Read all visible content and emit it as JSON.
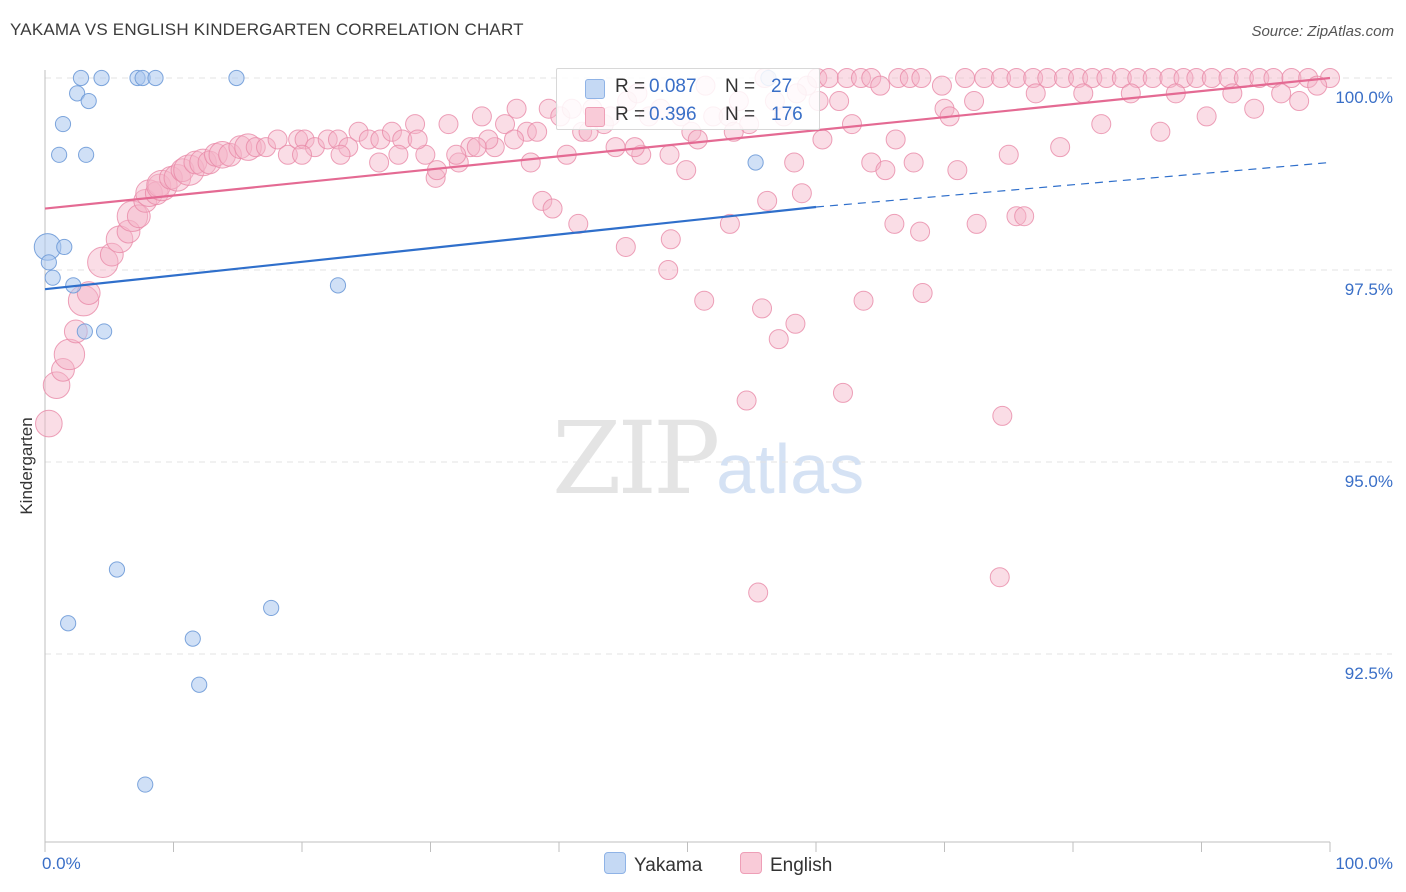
{
  "header": {
    "title": "YAKAMA VS ENGLISH KINDERGARTEN CORRELATION CHART",
    "source": "Source: ZipAtlas.com"
  },
  "watermark": {
    "zip": "ZIP",
    "atlas": "atlas"
  },
  "legend": {
    "rows": [
      {
        "r_label": "R = ",
        "r_value": "0.087",
        "n_label": "N = ",
        "n_value": "27",
        "color": "#a9c7ef"
      },
      {
        "r_label": "R = ",
        "r_value": "0.396",
        "n_label": "N = ",
        "n_value": "176",
        "color": "#f5b4c7"
      }
    ]
  },
  "bottom_legend": {
    "yakama": "Yakama",
    "english": "English"
  },
  "chart_data": {
    "type": "scatter",
    "title": "YAKAMA VS ENGLISH KINDERGARTEN CORRELATION CHART",
    "xlabel": "",
    "ylabel": "Kindergarten",
    "xlim": [
      0,
      100
    ],
    "ylim": [
      90.2,
      100.3
    ],
    "x_tick_labels": [
      "0.0%",
      "100.0%"
    ],
    "y_ticks": [
      100,
      97.5,
      95,
      92.5
    ],
    "y_tick_labels": [
      "100.0%",
      "97.5%",
      "95.0%",
      "92.5%"
    ],
    "grid": true,
    "series": [
      {
        "name": "Yakama",
        "color": "#a9c7ef",
        "stroke": "#6f9bd8",
        "points": [
          [
            0.2,
            97.8,
            14
          ],
          [
            0.3,
            97.6,
            8
          ],
          [
            0.6,
            97.4,
            8
          ],
          [
            1.5,
            97.8,
            8
          ],
          [
            1.8,
            92.9,
            8
          ],
          [
            2.2,
            97.3,
            8
          ],
          [
            1.4,
            99.4,
            8
          ],
          [
            1.1,
            99.0,
            8
          ],
          [
            3.2,
            99.0,
            8
          ],
          [
            2.5,
            99.8,
            8
          ],
          [
            3.4,
            99.7,
            8
          ],
          [
            2.8,
            100.0,
            8
          ],
          [
            4.4,
            100.0,
            8
          ],
          [
            7.2,
            100.0,
            8
          ],
          [
            7.6,
            100.0,
            8
          ],
          [
            8.6,
            100.0,
            8
          ],
          [
            14.9,
            100.0,
            8
          ],
          [
            3.1,
            96.7,
            8
          ],
          [
            4.6,
            96.7,
            8
          ],
          [
            5.6,
            93.6,
            8
          ],
          [
            11.5,
            92.7,
            8
          ],
          [
            12.0,
            92.1,
            8
          ],
          [
            17.6,
            93.1,
            8
          ],
          [
            7.8,
            90.8,
            8
          ],
          [
            22.8,
            97.3,
            8
          ],
          [
            55.3,
            98.9,
            8
          ],
          [
            56.3,
            100.0,
            8
          ]
        ],
        "trend": {
          "x0": 0,
          "y0": 97.25,
          "x1": 60,
          "y1": 98.32,
          "x_dash_end": 100,
          "y_dash_end": 98.9
        }
      },
      {
        "name": "English",
        "color": "#f5b4c7",
        "stroke": "#e98aa8",
        "points": [
          [
            0.3,
            95.5,
            14
          ],
          [
            0.9,
            96.0,
            14
          ],
          [
            1.4,
            96.2,
            12
          ],
          [
            1.9,
            96.4,
            16
          ],
          [
            2.4,
            96.7,
            12
          ],
          [
            3.0,
            97.1,
            16
          ],
          [
            3.4,
            97.2,
            12
          ],
          [
            4.5,
            97.6,
            16
          ],
          [
            5.2,
            97.7,
            12
          ],
          [
            5.8,
            97.9,
            14
          ],
          [
            6.5,
            98.0,
            12
          ],
          [
            6.8,
            98.2,
            16
          ],
          [
            7.3,
            98.2,
            12
          ],
          [
            7.8,
            98.4,
            12
          ],
          [
            8.1,
            98.5,
            14
          ],
          [
            8.7,
            98.5,
            12
          ],
          [
            8.9,
            98.6,
            12
          ],
          [
            9.1,
            98.6,
            16
          ],
          [
            9.8,
            98.7,
            12
          ],
          [
            10.3,
            98.7,
            14
          ],
          [
            10.7,
            98.8,
            12
          ],
          [
            11.2,
            98.8,
            16
          ],
          [
            11.7,
            98.9,
            12
          ],
          [
            12.3,
            98.9,
            14
          ],
          [
            12.8,
            98.9,
            12
          ],
          [
            13.3,
            99.0,
            12
          ],
          [
            13.8,
            99.0,
            14
          ],
          [
            14.4,
            99.0,
            12
          ],
          [
            15.2,
            99.1,
            12
          ],
          [
            15.8,
            99.1,
            14
          ],
          [
            16.4,
            99.1,
            10
          ],
          [
            17.2,
            99.1,
            10
          ],
          [
            18.1,
            99.2,
            10
          ],
          [
            18.9,
            99.0,
            10
          ],
          [
            19.7,
            99.2,
            10
          ],
          [
            20.2,
            99.2,
            10
          ],
          [
            21.0,
            99.1,
            10
          ],
          [
            22.0,
            99.2,
            10
          ],
          [
            22.8,
            99.2,
            10
          ],
          [
            23.6,
            99.1,
            10
          ],
          [
            24.4,
            99.3,
            10
          ],
          [
            25.2,
            99.2,
            10
          ],
          [
            26.1,
            99.2,
            10
          ],
          [
            27.0,
            99.3,
            10
          ],
          [
            27.8,
            99.2,
            10
          ],
          [
            28.8,
            99.4,
            10
          ],
          [
            29.6,
            99.0,
            10
          ],
          [
            30.4,
            98.7,
            10
          ],
          [
            31.4,
            99.4,
            10
          ],
          [
            32.2,
            98.9,
            10
          ],
          [
            33.1,
            99.1,
            10
          ],
          [
            34.0,
            99.5,
            10
          ],
          [
            35.0,
            99.1,
            10
          ],
          [
            35.8,
            99.4,
            10
          ],
          [
            36.7,
            99.6,
            10
          ],
          [
            37.5,
            99.3,
            10
          ],
          [
            38.3,
            99.3,
            10
          ],
          [
            39.2,
            99.6,
            10
          ],
          [
            40.1,
            99.5,
            10
          ],
          [
            41.0,
            99.6,
            10
          ],
          [
            41.8,
            99.3,
            10
          ],
          [
            42.6,
            99.6,
            10
          ],
          [
            43.5,
            99.4,
            10
          ],
          [
            44.4,
            99.1,
            10
          ],
          [
            45.3,
            99.7,
            10
          ],
          [
            46.1,
            99.8,
            10
          ],
          [
            47.0,
            99.5,
            10
          ],
          [
            47.9,
            99.6,
            10
          ],
          [
            48.6,
            99.0,
            10
          ],
          [
            49.5,
            99.5,
            10
          ],
          [
            50.3,
            99.3,
            10
          ],
          [
            51.4,
            99.9,
            10
          ],
          [
            52.0,
            99.5,
            10
          ],
          [
            53.2,
            99.5,
            10
          ],
          [
            54.0,
            99.7,
            10
          ],
          [
            54.8,
            99.4,
            10
          ],
          [
            56.0,
            100.0,
            10
          ],
          [
            56.8,
            99.7,
            10
          ],
          [
            57.5,
            99.5,
            10
          ],
          [
            58.3,
            98.9,
            10
          ],
          [
            59.3,
            99.9,
            10
          ],
          [
            60.1,
            100.0,
            10
          ],
          [
            61.0,
            100.0,
            10
          ],
          [
            61.8,
            99.7,
            10
          ],
          [
            62.4,
            100.0,
            10
          ],
          [
            63.5,
            100.0,
            10
          ],
          [
            64.3,
            100.0,
            10
          ],
          [
            65.0,
            99.9,
            10
          ],
          [
            66.4,
            100.0,
            10
          ],
          [
            67.3,
            100.0,
            10
          ],
          [
            68.2,
            100.0,
            10
          ],
          [
            69.8,
            99.9,
            10
          ],
          [
            71.6,
            100.0,
            10
          ],
          [
            73.1,
            100.0,
            10
          ],
          [
            74.4,
            100.0,
            10
          ],
          [
            75.6,
            100.0,
            10
          ],
          [
            76.9,
            100.0,
            10
          ],
          [
            78.0,
            100.0,
            10
          ],
          [
            79.3,
            100.0,
            10
          ],
          [
            80.4,
            100.0,
            10
          ],
          [
            81.5,
            100.0,
            10
          ],
          [
            82.6,
            100.0,
            10
          ],
          [
            83.8,
            100.0,
            10
          ],
          [
            85.0,
            100.0,
            10
          ],
          [
            86.2,
            100.0,
            10
          ],
          [
            87.5,
            100.0,
            10
          ],
          [
            88.6,
            100.0,
            10
          ],
          [
            89.6,
            100.0,
            10
          ],
          [
            90.8,
            100.0,
            10
          ],
          [
            92.1,
            100.0,
            10
          ],
          [
            93.3,
            100.0,
            10
          ],
          [
            94.5,
            100.0,
            10
          ],
          [
            95.6,
            100.0,
            10
          ],
          [
            97.0,
            100.0,
            10
          ],
          [
            98.3,
            100.0,
            10
          ],
          [
            100.0,
            100.0,
            10
          ],
          [
            38.7,
            98.4,
            10
          ],
          [
            39.5,
            98.3,
            10
          ],
          [
            41.5,
            98.1,
            10
          ],
          [
            45.2,
            97.8,
            10
          ],
          [
            48.7,
            97.9,
            10
          ],
          [
            53.3,
            98.1,
            10
          ],
          [
            56.2,
            98.4,
            10
          ],
          [
            48.5,
            97.5,
            10
          ],
          [
            51.3,
            97.1,
            10
          ],
          [
            55.8,
            97.0,
            10
          ],
          [
            63.7,
            97.1,
            10
          ],
          [
            66.1,
            98.1,
            10
          ],
          [
            68.1,
            98.0,
            10
          ],
          [
            72.5,
            98.1,
            10
          ],
          [
            75.6,
            98.2,
            10
          ],
          [
            76.2,
            98.2,
            10
          ],
          [
            58.4,
            96.8,
            10
          ],
          [
            57.1,
            96.6,
            10
          ],
          [
            54.6,
            95.8,
            10
          ],
          [
            62.1,
            95.9,
            10
          ],
          [
            68.3,
            97.2,
            10
          ],
          [
            74.5,
            95.6,
            10
          ],
          [
            55.5,
            93.3,
            10
          ],
          [
            74.3,
            93.5,
            10
          ],
          [
            60.2,
            99.7,
            10
          ],
          [
            64.3,
            98.9,
            10
          ],
          [
            65.4,
            98.8,
            10
          ],
          [
            70.0,
            99.6,
            10
          ],
          [
            26.0,
            98.9,
            10
          ],
          [
            30.5,
            98.8,
            10
          ],
          [
            34.5,
            99.2,
            10
          ],
          [
            37.8,
            98.9,
            10
          ],
          [
            44.0,
            99.5,
            10
          ],
          [
            46.4,
            99.0,
            10
          ],
          [
            53.6,
            99.3,
            10
          ],
          [
            58.5,
            99.8,
            10
          ],
          [
            62.8,
            99.4,
            10
          ],
          [
            66.2,
            99.2,
            10
          ],
          [
            70.4,
            99.5,
            10
          ],
          [
            72.3,
            99.7,
            10
          ],
          [
            77.1,
            99.8,
            10
          ],
          [
            80.8,
            99.8,
            10
          ],
          [
            84.5,
            99.8,
            10
          ],
          [
            88.0,
            99.8,
            10
          ],
          [
            92.4,
            99.8,
            10
          ],
          [
            96.2,
            99.8,
            10
          ],
          [
            23.0,
            99.0,
            10
          ],
          [
            20.0,
            99.0,
            10
          ],
          [
            27.5,
            99.0,
            10
          ],
          [
            32.0,
            99.0,
            10
          ],
          [
            36.5,
            99.2,
            10
          ],
          [
            42.3,
            99.3,
            10
          ],
          [
            50.8,
            99.2,
            10
          ],
          [
            60.5,
            99.2,
            10
          ],
          [
            67.6,
            98.9,
            10
          ],
          [
            71.0,
            98.8,
            10
          ],
          [
            75.0,
            99.0,
            10
          ],
          [
            79.0,
            99.1,
            10
          ],
          [
            82.2,
            99.4,
            10
          ],
          [
            86.8,
            99.3,
            10
          ],
          [
            90.4,
            99.5,
            10
          ],
          [
            94.1,
            99.6,
            10
          ],
          [
            97.6,
            99.7,
            10
          ],
          [
            99.0,
            99.9,
            10
          ],
          [
            29.0,
            99.2,
            10
          ],
          [
            33.6,
            99.1,
            10
          ],
          [
            40.6,
            99.0,
            10
          ],
          [
            45.9,
            99.1,
            10
          ],
          [
            49.9,
            98.8,
            10
          ],
          [
            58.9,
            98.5,
            10
          ]
        ],
        "trend": {
          "x0": 0,
          "y0": 98.3,
          "x1": 100,
          "y1": 100.0
        }
      }
    ]
  }
}
